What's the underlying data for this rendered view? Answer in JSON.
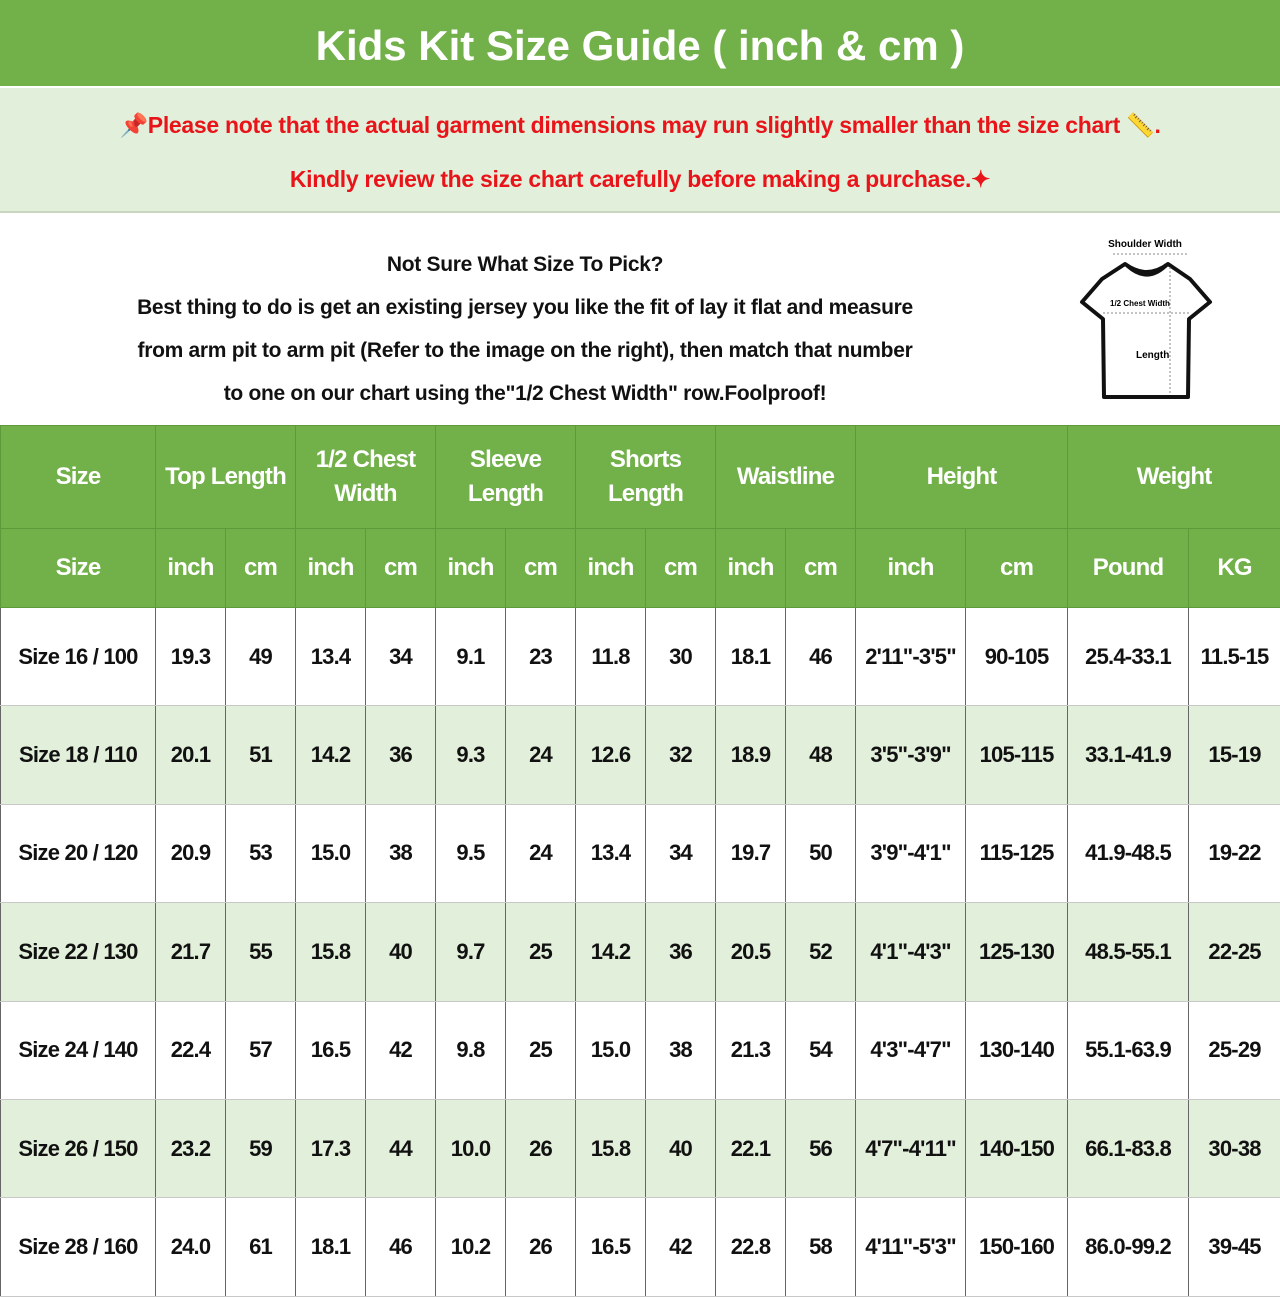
{
  "title": "Kids Kit Size Guide ( inch & cm )",
  "notice": {
    "line1": "Please note that the actual garment dimensions may run slightly smaller than the size chart",
    "line1_end": ".",
    "line2": "Kindly review the size chart carefully before making a purchase.",
    "color": "#e8141a",
    "icons": [
      "pushpin-icon",
      "ruler-icon",
      "sparkles-icon"
    ]
  },
  "intro": {
    "heading": "Not Sure What Size To Pick?",
    "lines": [
      "Best thing to do is get an existing jersey you like the fit of lay it flat and measure",
      "from arm pit to arm pit (Refer to the image on the right), then match that number",
      "to one on our chart using the\"1/2 Chest Width\" row.Foolproof!"
    ]
  },
  "diagram": {
    "shoulder": "Shoulder Width",
    "chest": "1/2 Chest Width",
    "length": "Length"
  },
  "colors": {
    "header_green": "#72b04a",
    "alt_row": "#e2efda"
  },
  "table": {
    "groups": [
      {
        "label": "Size",
        "span": 1
      },
      {
        "label": "Top Length",
        "span": 2
      },
      {
        "label": "1/2 Chest Width",
        "span": 2
      },
      {
        "label": "Sleeve Length",
        "span": 2
      },
      {
        "label": "Shorts Length",
        "span": 2
      },
      {
        "label": "Waistline",
        "span": 2
      },
      {
        "label": "Height",
        "span": 2
      },
      {
        "label": "Weight",
        "span": 2
      }
    ],
    "units": [
      "Size",
      "inch",
      "cm",
      "inch",
      "cm",
      "inch",
      "cm",
      "inch",
      "cm",
      "inch",
      "cm",
      "inch",
      "cm",
      "Pound",
      "KG"
    ],
    "rows": [
      [
        "Size 16 / 100",
        "19.3",
        "49",
        "13.4",
        "34",
        "9.1",
        "23",
        "11.8",
        "30",
        "18.1",
        "46",
        "2'11\"-3'5\"",
        "90-105",
        "25.4-33.1",
        "11.5-15"
      ],
      [
        "Size 18 / 110",
        "20.1",
        "51",
        "14.2",
        "36",
        "9.3",
        "24",
        "12.6",
        "32",
        "18.9",
        "48",
        "3'5\"-3'9\"",
        "105-115",
        "33.1-41.9",
        "15-19"
      ],
      [
        "Size 20 / 120",
        "20.9",
        "53",
        "15.0",
        "38",
        "9.5",
        "24",
        "13.4",
        "34",
        "19.7",
        "50",
        "3'9\"-4'1\"",
        "115-125",
        "41.9-48.5",
        "19-22"
      ],
      [
        "Size 22 / 130",
        "21.7",
        "55",
        "15.8",
        "40",
        "9.7",
        "25",
        "14.2",
        "36",
        "20.5",
        "52",
        "4'1\"-4'3\"",
        "125-130",
        "48.5-55.1",
        "22-25"
      ],
      [
        "Size 24 / 140",
        "22.4",
        "57",
        "16.5",
        "42",
        "9.8",
        "25",
        "15.0",
        "38",
        "21.3",
        "54",
        "4'3\"-4'7\"",
        "130-140",
        "55.1-63.9",
        "25-29"
      ],
      [
        "Size 26 / 150",
        "23.2",
        "59",
        "17.3",
        "44",
        "10.0",
        "26",
        "15.8",
        "40",
        "22.1",
        "56",
        "4'7\"-4'11\"",
        "140-150",
        "66.1-83.8",
        "30-38"
      ],
      [
        "Size 28 / 160",
        "24.0",
        "61",
        "18.1",
        "46",
        "10.2",
        "26",
        "16.5",
        "42",
        "22.8",
        "58",
        "4'11\"-5'3\"",
        "150-160",
        "86.0-99.2",
        "39-45"
      ]
    ]
  }
}
